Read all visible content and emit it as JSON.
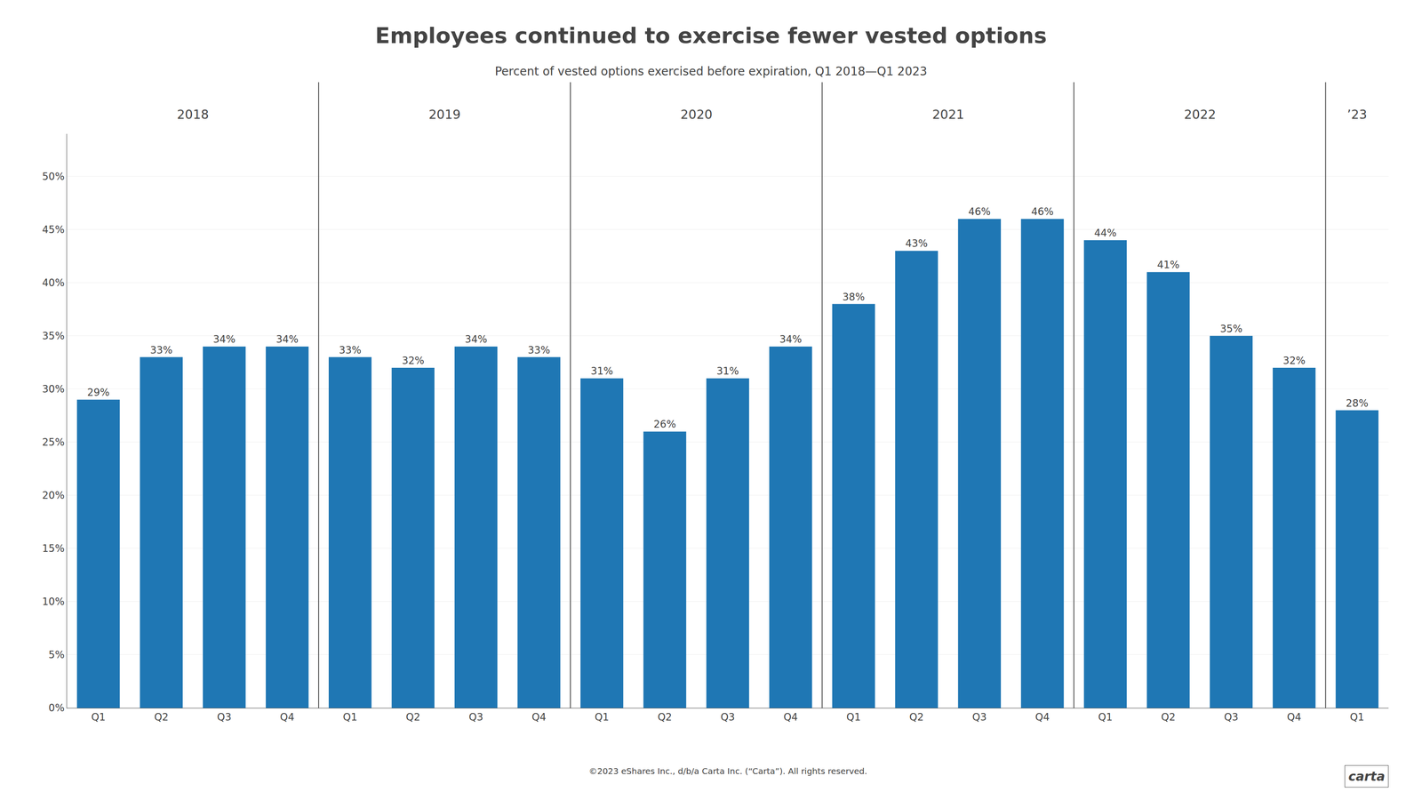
{
  "chart_data": {
    "type": "bar",
    "title": "Employees continued to exercise fewer vested options",
    "subtitle": "Percent of vested options exercised before expiration, Q1 2018—Q1 2023",
    "footnote": "©2023 eShares Inc., d/b/a Carta Inc. (“Carta”). All rights reserved.",
    "logo": "carta",
    "annotations": [
      "2018",
      "2019",
      "2020",
      "2021",
      "2022",
      "’23"
    ],
    "categories": [
      "Q1",
      "Q2",
      "Q3",
      "Q4",
      "Q1",
      "Q2",
      "Q3",
      "Q4",
      "Q1",
      "Q2",
      "Q3",
      "Q4",
      "Q1",
      "Q2",
      "Q3",
      "Q4",
      "Q1",
      "Q2",
      "Q3",
      "Q4",
      "Q1"
    ],
    "values": [
      29,
      33,
      34,
      34,
      33,
      32,
      34,
      33,
      31,
      26,
      31,
      34,
      38,
      43,
      46,
      46,
      44,
      41,
      35,
      32,
      28
    ],
    "value_labels": [
      "29%",
      "33%",
      "34%",
      "34%",
      "33%",
      "32%",
      "34%",
      "33%",
      "31%",
      "26%",
      "31%",
      "34%",
      "38%",
      "43%",
      "46%",
      "46%",
      "44%",
      "41%",
      "35%",
      "32%",
      "28%"
    ],
    "data_labels": true,
    "ylim": [
      0,
      54
    ],
    "yticks": [
      {
        "value": 0,
        "label": "0%"
      },
      {
        "value": 5,
        "label": "5%"
      },
      {
        "value": 10,
        "label": "10%"
      },
      {
        "value": 15,
        "label": "15%"
      },
      {
        "value": 20,
        "label": "20%"
      },
      {
        "value": 25,
        "label": "25%"
      },
      {
        "value": 30,
        "label": "30%"
      },
      {
        "value": 35,
        "label": "35%"
      },
      {
        "value": 40,
        "label": "40%"
      },
      {
        "value": 45,
        "label": "45%"
      },
      {
        "value": 50,
        "label": "50%"
      }
    ],
    "grid": true
  }
}
